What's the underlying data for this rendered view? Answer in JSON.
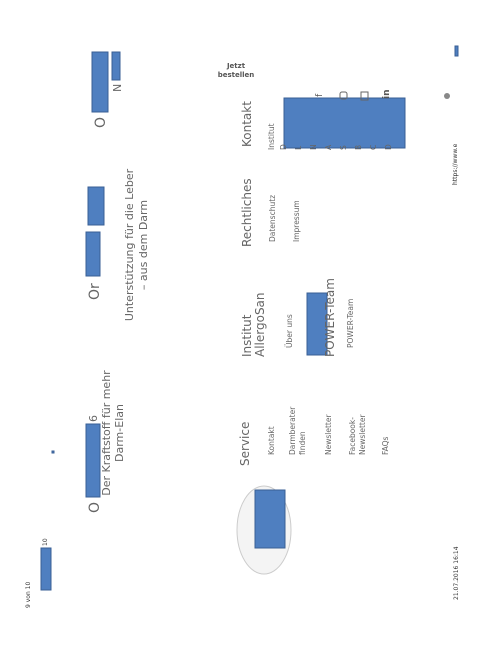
{
  "page": {
    "page_number": "9 von 10",
    "date": "21.07.2016 16:14",
    "url": "https://www.e",
    "header_fragment": "10"
  },
  "teasers": [
    {
      "prefix": "O",
      "suffix": "6",
      "lines": [
        "Der Kraftstoff für mehr",
        "Darm-Elan"
      ]
    },
    {
      "prefix": "Or",
      "lines": [
        "Unterstützung für die Leber",
        "– aus dem Darm"
      ]
    },
    {
      "prefix": "O",
      "suffix": "N"
    }
  ],
  "footer": {
    "service": {
      "title": "Service",
      "links": [
        "Kontakt",
        "Darmberater",
        "finden",
        "Newsletter",
        "Facebook-",
        "Newsletter",
        "FAQs"
      ]
    },
    "institut": {
      "title": [
        "Institut",
        "AllergoSan"
      ],
      "links": [
        "Über uns"
      ],
      "team_title": "POWER-Team",
      "team_link": "POWER-Team"
    },
    "rechtliches": {
      "title": "Rechtliches",
      "links": [
        "Datenschutz",
        "Impressum"
      ]
    },
    "kontakt": {
      "title": "Kontakt",
      "first_line": "Institut",
      "letters": [
        "D",
        "L",
        "N",
        "A",
        "S",
        "B",
        "C",
        "D"
      ]
    },
    "order": [
      "Jetzt",
      "bestellen"
    ],
    "icons": [
      "f",
      "in"
    ]
  }
}
